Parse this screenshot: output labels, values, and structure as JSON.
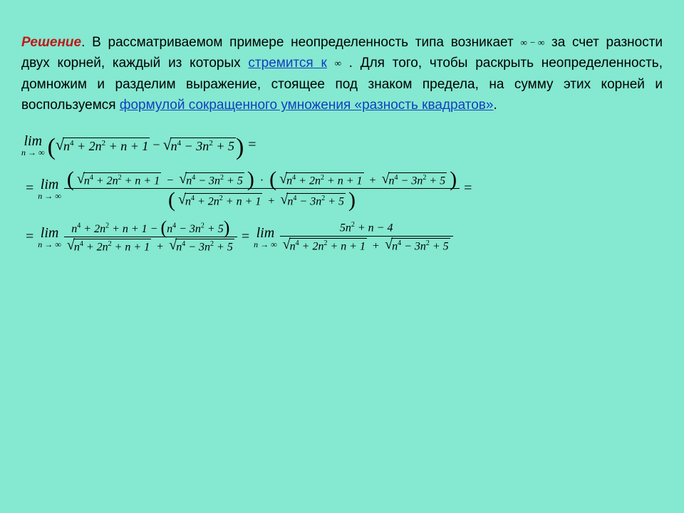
{
  "background_color": "#85e8d0",
  "label_color": "#c01818",
  "link_color": "#1040c0",
  "text_color": "#000000",
  "text": {
    "label": "Решение",
    "p1a": ". В рассматриваемом примере неопределенность типа",
    "p1b": "возникает",
    "inf_mark": "∞ − ∞",
    "p1c": "за счет разности двух корней, каждый из которых",
    "link1": "стремится к",
    "p1d": "   . Для того, чтобы раскрыть неопределенность, домножим и разделим выражение, стоящее под знаком предела, на сумму этих корней и воспользуемся",
    "p1e": "",
    "inf2": "∞",
    "link2": "формулой сокращенного умножения «разность квадратов»",
    "period": "."
  },
  "math": {
    "lim": "lim",
    "limsub": "n → ∞",
    "sqrtA": "n⁴ + 2n² + n + 1",
    "sqrtB": "n⁴ − 3n² + 5",
    "numA": "n⁴ + 2n² + n + 1",
    "numB": "n⁴ − 3n² + 5",
    "final_num": "5n² + n − 4"
  }
}
